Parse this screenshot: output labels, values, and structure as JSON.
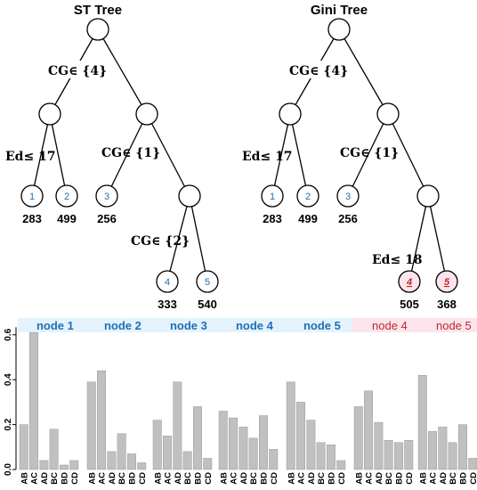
{
  "trees": {
    "st": {
      "title": "ST Tree",
      "splits": {
        "root": "CG∈ {4}",
        "left": "Ed≤ 17",
        "right": "CG∈ {1}",
        "rr": "CG∈ {2}"
      },
      "leaves": [
        {
          "id": "1",
          "count": "283"
        },
        {
          "id": "2",
          "count": "499"
        },
        {
          "id": "3",
          "count": "256"
        },
        {
          "id": "4",
          "count": "333"
        },
        {
          "id": "5",
          "count": "540"
        }
      ]
    },
    "gini": {
      "title": "Gini Tree",
      "splits": {
        "root": "CG∈ {4}",
        "left": "Ed≤ 17",
        "right": "CG∈ {1}",
        "rr": "Ed≤ 18"
      },
      "leaves": [
        {
          "id": "1",
          "count": "283"
        },
        {
          "id": "2",
          "count": "499"
        },
        {
          "id": "3",
          "count": "256"
        },
        {
          "id": "4",
          "count": "505"
        },
        {
          "id": "5",
          "count": "368"
        }
      ]
    }
  },
  "colors": {
    "line": "#000000",
    "node_fill": "#ffffff",
    "blue": "#1f6fb5",
    "red": "#c0272d",
    "bar": "#c0c0c0",
    "bar_edge": "#8c8c8c",
    "panel_bg_blue": "#e4f3fb",
    "panel_bg_red": "#fbe4ec"
  },
  "chart_data": {
    "type": "bar",
    "ylim": [
      0,
      0.65
    ],
    "yticks": [
      "0.0",
      "0.2",
      "0.4",
      "0.6"
    ],
    "categories": [
      "AB",
      "AC",
      "AD",
      "BC",
      "BD",
      "CD"
    ],
    "panels": [
      {
        "name": "node 1",
        "color": "blue",
        "values": [
          0.2,
          0.61,
          0.04,
          0.18,
          0.02,
          0.04
        ]
      },
      {
        "name": "node 2",
        "color": "blue",
        "values": [
          0.39,
          0.44,
          0.08,
          0.16,
          0.07,
          0.03
        ]
      },
      {
        "name": "node 3",
        "color": "blue",
        "values": [
          0.22,
          0.15,
          0.39,
          0.08,
          0.28,
          0.05
        ]
      },
      {
        "name": "node 4",
        "color": "blue",
        "values": [
          0.26,
          0.23,
          0.19,
          0.14,
          0.24,
          0.09
        ]
      },
      {
        "name": "node 5",
        "color": "blue",
        "values": [
          0.39,
          0.3,
          0.22,
          0.12,
          0.11,
          0.04
        ]
      },
      {
        "name": "node 4",
        "color": "red",
        "values": [
          0.28,
          0.35,
          0.21,
          0.13,
          0.12,
          0.13
        ]
      },
      {
        "name": "node 5",
        "color": "red",
        "values": [
          0.42,
          0.17,
          0.19,
          0.12,
          0.2,
          0.05
        ]
      }
    ]
  }
}
